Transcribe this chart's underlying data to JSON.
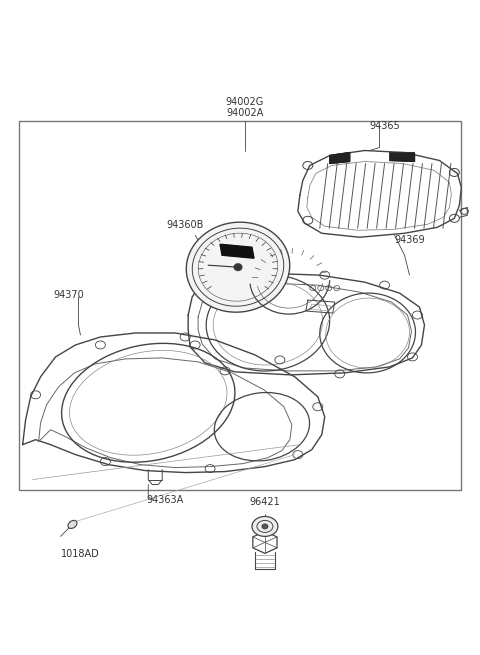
{
  "bg_color": "#ffffff",
  "line_color": "#444444",
  "text_color": "#333333",
  "label_fontsize": 7.0,
  "parts": [
    {
      "id": "94002G_A",
      "text": "94002G\n94002A"
    },
    {
      "id": "94365",
      "text": "94365"
    },
    {
      "id": "94369",
      "text": "94369"
    },
    {
      "id": "94370",
      "text": "94370"
    },
    {
      "id": "94360B",
      "text": "94360B"
    },
    {
      "id": "94363A",
      "text": "94363A"
    },
    {
      "id": "96421",
      "text": "96421"
    },
    {
      "id": "1018AD",
      "text": "1018AD"
    }
  ]
}
